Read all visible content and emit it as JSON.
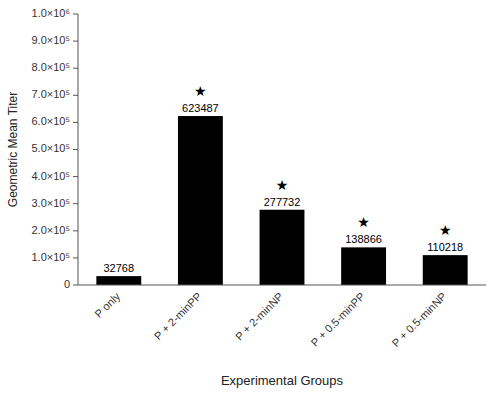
{
  "chart_data": {
    "type": "bar",
    "categories": [
      "P only",
      "P + 2-minPP",
      "P + 2-minNP",
      "P + 0.5-minPP",
      "P + 0.5-minNP"
    ],
    "values": [
      32768,
      623487,
      277732,
      138866,
      110218
    ],
    "color": "#000000",
    "data_labels": true,
    "annotations": [
      null,
      "★",
      "★",
      "★",
      "★"
    ],
    "xlabel": "Experimental Groups",
    "ylabel": "Geometric Mean Titer",
    "ylim": [
      0,
      1000000
    ],
    "yticks": [
      0,
      {
        "value": 100000,
        "label": "1.0×10⁵"
      },
      {
        "value": 200000,
        "label": "2.0×10⁵"
      },
      {
        "value": 300000,
        "label": "3.0×10⁵"
      },
      {
        "value": 400000,
        "label": "4.0×10⁵"
      },
      {
        "value": 500000,
        "label": "5.0×10⁵"
      },
      {
        "value": 600000,
        "label": "6.0×10⁵"
      },
      {
        "value": 700000,
        "label": "7.0×10⁵"
      },
      {
        "value": 800000,
        "label": "8.0×10⁵"
      },
      {
        "value": 900000,
        "label": "9.0×10⁵"
      },
      {
        "value": 1000000,
        "label": "1.0×10⁶"
      }
    ],
    "grid": false
  }
}
